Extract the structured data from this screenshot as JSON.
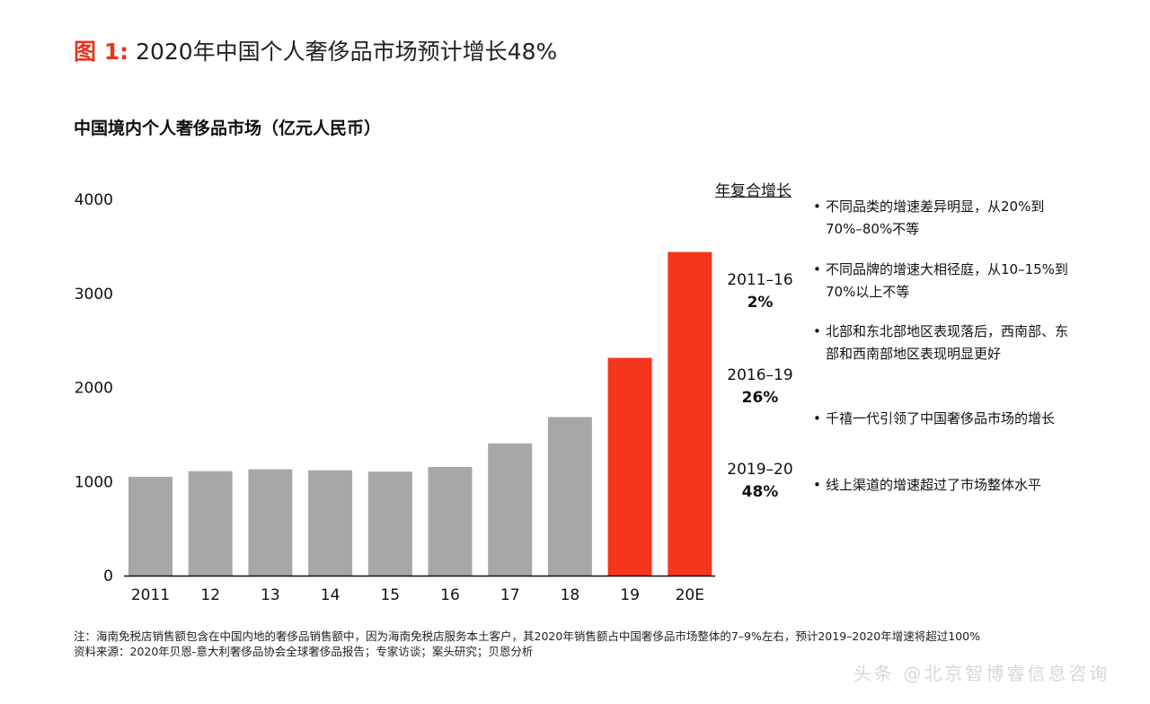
{
  "figure": {
    "label": "图 1:",
    "title": "2020年中国个人奢侈品市场预计增长48%"
  },
  "chart_data": {
    "type": "bar",
    "title": "中国境内个人奢侈品市场（亿元人民币）",
    "xlabel": "",
    "ylabel": "",
    "categories": [
      "2011",
      "12",
      "13",
      "14",
      "15",
      "16",
      "17",
      "18",
      "19",
      "20E"
    ],
    "values": [
      1050,
      1110,
      1130,
      1120,
      1105,
      1155,
      1405,
      1685,
      2315,
      3440
    ],
    "highlight": [
      false,
      false,
      false,
      false,
      false,
      false,
      false,
      false,
      true,
      true
    ],
    "y_ticks": [
      0,
      1000,
      2000,
      3000,
      4000
    ],
    "ylim": [
      0,
      4000
    ],
    "grid": false,
    "colors": {
      "normal": "#a7a7a7",
      "highlight": "#f5361c"
    }
  },
  "cagr": {
    "heading": "年复合增长",
    "items": [
      {
        "period": "2011–16",
        "rate": "2%"
      },
      {
        "period": "2016–19",
        "rate": "26%"
      },
      {
        "period": "2019–20",
        "rate": "48%"
      }
    ]
  },
  "notes": {
    "bullet": "•",
    "items": [
      "不同品类的增速差异明显，从20%到70%–80%不等",
      "不同品牌的增速大相径庭，从10–15%到70%以上不等",
      "北部和东北部地区表现落后，西南部、东部和西南部地区表现明显更好",
      "千禧一代引领了中国奢侈品市场的增长",
      "线上渠道的增速超过了市场整体水平"
    ]
  },
  "footnote": {
    "note": "注：海南免税店销售额包含在中国内地的奢侈品销售额中，因为海南免税店服务本土客户，其2020年销售额占中国奢侈品市场整体的7–9%左右，预计2019–2020年增速将超过100%",
    "source": "资料来源：2020年贝恩-意大利奢侈品协会全球奢侈品报告；专家访谈；案头研究；贝恩分析"
  },
  "watermark": "头条 @北京智博睿信息咨询"
}
